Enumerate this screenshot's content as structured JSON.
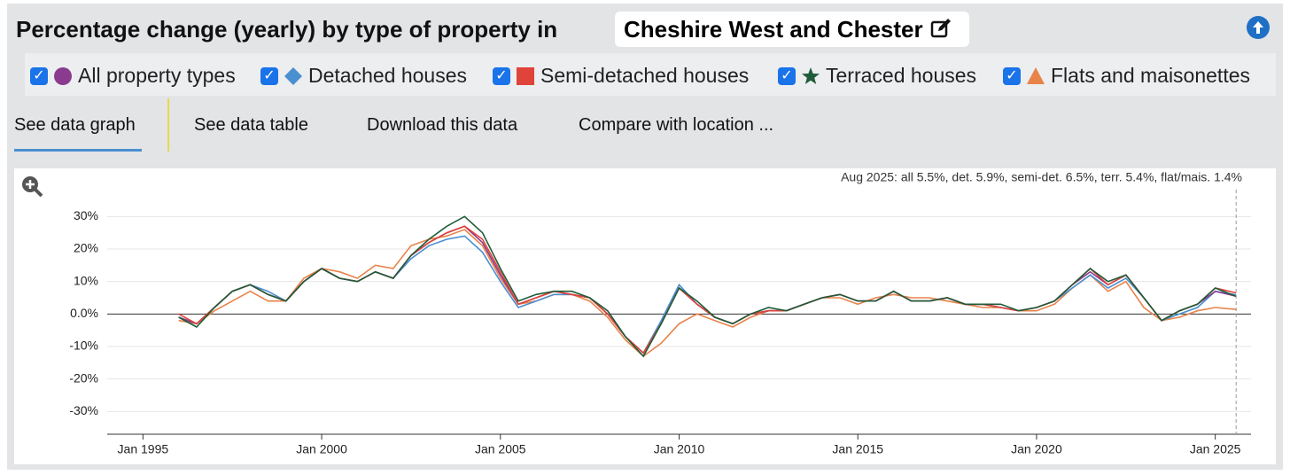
{
  "header": {
    "title": "Percentage change (yearly) by type of property in",
    "location": "Cheshire West and Chester"
  },
  "tabs": [
    "See data graph",
    "See data table",
    "Download this data",
    "Compare with location ..."
  ],
  "chart_data": {
    "type": "line",
    "annotation": "Aug 2025: all 5.5%, det. 5.9%, semi-det. 6.5%, terr. 5.4%, flat/mais. 1.4%",
    "marker_x": "2025-08",
    "x": [
      "1996-01",
      "1996-07",
      "1997-01",
      "1997-07",
      "1998-01",
      "1998-07",
      "1999-01",
      "1999-07",
      "2000-01",
      "2000-07",
      "2001-01",
      "2001-07",
      "2002-01",
      "2002-07",
      "2003-01",
      "2003-07",
      "2004-01",
      "2004-07",
      "2005-01",
      "2005-07",
      "2006-01",
      "2006-07",
      "2007-01",
      "2007-07",
      "2008-01",
      "2008-07",
      "2009-01",
      "2009-07",
      "2010-01",
      "2010-07",
      "2011-01",
      "2011-07",
      "2012-01",
      "2012-07",
      "2013-01",
      "2013-07",
      "2014-01",
      "2014-07",
      "2015-01",
      "2015-07",
      "2016-01",
      "2016-07",
      "2017-01",
      "2017-07",
      "2018-01",
      "2018-07",
      "2019-01",
      "2019-07",
      "2020-01",
      "2020-07",
      "2021-01",
      "2021-07",
      "2022-01",
      "2022-07",
      "2023-01",
      "2023-07",
      "2024-01",
      "2024-07",
      "2025-01",
      "2025-08"
    ],
    "series": [
      {
        "name": "All property types",
        "color": "#8a3b8f",
        "marker": "circle",
        "values": [
          -1,
          -3,
          2,
          7,
          9,
          6,
          4,
          10,
          14,
          11,
          10,
          13,
          11,
          18,
          22,
          25,
          27,
          22,
          12,
          3,
          5,
          7,
          6,
          5,
          0,
          -7,
          -12,
          -3,
          8,
          3,
          -1,
          -3,
          0,
          1,
          1,
          3,
          5,
          6,
          4,
          4,
          7,
          4,
          4,
          5,
          3,
          3,
          2,
          1,
          2,
          4,
          9,
          13,
          9,
          12,
          5,
          -2,
          1,
          3,
          7,
          5.5
        ]
      },
      {
        "name": "Detached houses",
        "color": "#4a8fd0",
        "marker": "diamond",
        "values": [
          -1,
          -3,
          2,
          7,
          9,
          7,
          4,
          10,
          14,
          11,
          10,
          13,
          11,
          17,
          21,
          23,
          24,
          19,
          10,
          2,
          4,
          6,
          6,
          5,
          0,
          -7,
          -12,
          -2,
          9,
          3,
          -1,
          -3,
          0,
          1,
          1,
          3,
          5,
          6,
          4,
          4,
          7,
          4,
          4,
          5,
          3,
          3,
          2,
          1,
          2,
          4,
          8,
          12,
          8,
          11,
          5,
          -2,
          0,
          2,
          7,
          5.9
        ]
      },
      {
        "name": "Semi-detached houses",
        "color": "#e0433a",
        "marker": "square",
        "values": [
          0,
          -3,
          2,
          7,
          9,
          6,
          4,
          10,
          14,
          11,
          10,
          13,
          11,
          18,
          22,
          25,
          27,
          23,
          13,
          3,
          5,
          7,
          6,
          5,
          0,
          -7,
          -12,
          -3,
          8,
          3,
          -1,
          -3,
          0,
          1,
          1,
          3,
          5,
          6,
          4,
          4,
          7,
          4,
          4,
          5,
          3,
          3,
          2,
          1,
          2,
          4,
          9,
          14,
          9,
          12,
          5,
          -2,
          1,
          3,
          8,
          6.5
        ]
      },
      {
        "name": "Terraced houses",
        "color": "#1f5c38",
        "marker": "star",
        "values": [
          -1,
          -4,
          2,
          7,
          9,
          6,
          4,
          10,
          14,
          11,
          10,
          13,
          11,
          18,
          23,
          27,
          30,
          25,
          14,
          4,
          6,
          7,
          7,
          5,
          1,
          -7,
          -13,
          -3,
          8,
          4,
          -1,
          -3,
          0,
          2,
          1,
          3,
          5,
          6,
          4,
          4,
          7,
          4,
          4,
          5,
          3,
          3,
          3,
          1,
          2,
          4,
          9,
          14,
          10,
          12,
          5,
          -2,
          1,
          3,
          8,
          5.4
        ]
      },
      {
        "name": "Flats and maisonettes",
        "color": "#e8834a",
        "marker": "triangle",
        "values": [
          -2,
          -3,
          1,
          4,
          7,
          4,
          4,
          11,
          14,
          13,
          11,
          15,
          14,
          21,
          23,
          24,
          26,
          21,
          11,
          3,
          4,
          6,
          6,
          4,
          -1,
          -8,
          -13,
          -9,
          -3,
          0,
          -2,
          -4,
          -1,
          1,
          1,
          3,
          5,
          5,
          3,
          5,
          6,
          5,
          5,
          4,
          3,
          2,
          2,
          1,
          1,
          3,
          8,
          12,
          7,
          10,
          2,
          -2,
          -1,
          1,
          2,
          1.4
        ]
      }
    ],
    "xlim": [
      "1994-01",
      "2026-01"
    ],
    "xticks": [
      {
        "value": "1995-01",
        "label": "Jan 1995"
      },
      {
        "value": "2000-01",
        "label": "Jan 2000"
      },
      {
        "value": "2005-01",
        "label": "Jan 2005"
      },
      {
        "value": "2010-01",
        "label": "Jan 2010"
      },
      {
        "value": "2015-01",
        "label": "Jan 2015"
      },
      {
        "value": "2020-01",
        "label": "Jan 2020"
      },
      {
        "value": "2025-01",
        "label": "Jan 2025"
      }
    ],
    "ylim": [
      -37,
      35
    ],
    "yticks": [
      {
        "value": 30,
        "label": "30%"
      },
      {
        "value": 20,
        "label": "20%"
      },
      {
        "value": 10,
        "label": "10%"
      },
      {
        "value": 0,
        "label": "0.0%"
      },
      {
        "value": -10,
        "label": "-10%"
      },
      {
        "value": -20,
        "label": "-20%"
      },
      {
        "value": -30,
        "label": "-30%"
      }
    ],
    "grid": true
  }
}
